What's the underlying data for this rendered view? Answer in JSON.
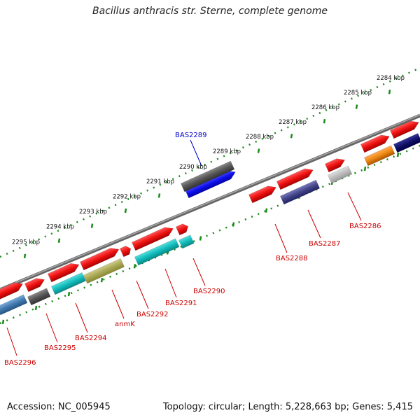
{
  "title": "Bacillus anthracis str. Sterne, complete genome",
  "footer": {
    "accession": "Accession: NC_005945",
    "summary": "Topology: circular; Length: 5,228,663 bp; Genes: 5,415"
  },
  "outer_scale_labels": [
    "2284 kbp",
    "2285 kbp",
    "2286 kbp",
    "2287 kbp",
    "2288 kbp",
    "2289 kbp",
    "2290 kbp",
    "2291 kbp",
    "2292 kbp",
    "2293 kbp",
    "2294 kbp",
    "2295 kbp"
  ],
  "gene_labels": [
    {
      "text": "BAS2289",
      "color": "#0000cc"
    },
    {
      "text": "BAS2286",
      "color": "#cc0000"
    },
    {
      "text": "BAS2287",
      "color": "#cc0000"
    },
    {
      "text": "BAS2288",
      "color": "#cc0000"
    },
    {
      "text": "BAS2290",
      "color": "#cc0000"
    },
    {
      "text": "BAS2291",
      "color": "#cc0000"
    },
    {
      "text": "BAS2292",
      "color": "#cc0000"
    },
    {
      "text": "anmK",
      "color": "#cc0000"
    },
    {
      "text": "BAS2294",
      "color": "#cc0000"
    },
    {
      "text": "BAS2295",
      "color": "#cc0000"
    },
    {
      "text": "BAS2296",
      "color": "#cc0000"
    }
  ],
  "colors": {
    "backbone": "#888888",
    "tick": "#1a8a1a",
    "gene_forward": "#ee1111",
    "cyan": "#11bbbb",
    "olive": "#aaa855",
    "dark_gray": "#555555",
    "light_gray": "#bbbbbb",
    "blue": "#1111ee",
    "navy": "#111166",
    "purple": "#444488",
    "orange": "#ee8811",
    "steel_blue": "#4477aa"
  }
}
